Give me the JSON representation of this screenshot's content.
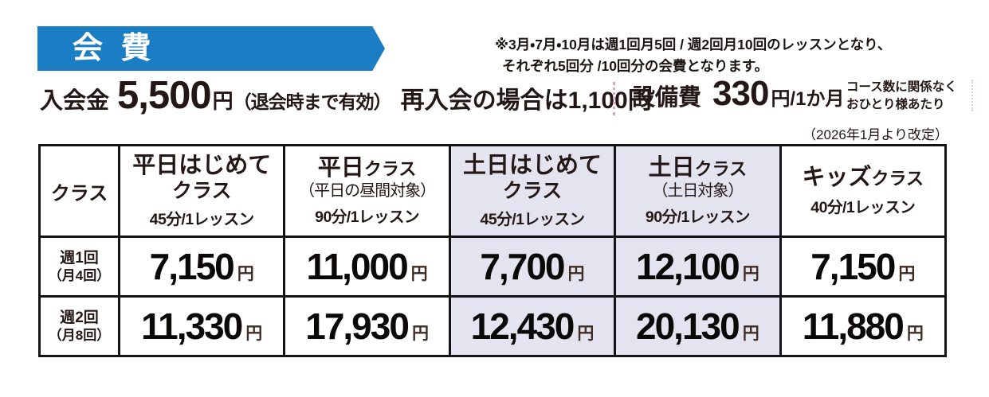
{
  "banner": {
    "title": "会 費"
  },
  "top_note": {
    "line1": "※3月・7月・10月は週1回月5回 / 週2回月10回のレッスンとなり、",
    "line2": "それぞれ5回分 /10回分の会費となります。"
  },
  "fees": {
    "admission_label": "入会金",
    "admission_amount": "5,500",
    "admission_unit": "円",
    "admission_validity": "（退会時まで有効）",
    "readmission": "再入会の場合は1,100円",
    "facility_label": "設備費",
    "facility_amount": "330",
    "facility_unit": "円/1か月",
    "facility_note_line1": "コース数に関係なく",
    "facility_note_line2": "おひとり様あたり"
  },
  "revision_note": "（2026年1月より改定）",
  "table": {
    "corner_label": "クラス",
    "price_unit": "円",
    "columns": [
      {
        "title": "平日はじめて",
        "title_suffix": "",
        "line2": "クラス",
        "lesson": "45分/1レッスン",
        "highlight": false
      },
      {
        "title": "平日",
        "title_suffix": "クラス",
        "line2": "（平日の昼間対象）",
        "lesson": "90分/1レッスン",
        "highlight": false
      },
      {
        "title": "土日はじめて",
        "title_suffix": "",
        "line2": "クラス",
        "lesson": "45分/1レッスン",
        "highlight": true
      },
      {
        "title": "土日",
        "title_suffix": "クラス",
        "line2": "（土日対象）",
        "lesson": "90分/1レッスン",
        "highlight": true
      },
      {
        "title": "キッズ",
        "title_suffix": "クラス",
        "line2": "",
        "lesson": "40分/1レッスン",
        "highlight": false
      }
    ],
    "rows": [
      {
        "label": "週1回",
        "label_sub": "（月4回）",
        "prices": [
          "7,150",
          "11,000",
          "7,700",
          "12,100",
          "7,150"
        ]
      },
      {
        "label": "週2回",
        "label_sub": "（月8回）",
        "prices": [
          "11,330",
          "17,930",
          "12,430",
          "20,130",
          "11,880"
        ]
      }
    ]
  },
  "colors": {
    "banner_blue": "#1b7ec4",
    "highlight_lavender": "#e4e3f0",
    "text_black": "#231815",
    "yen_brown": "#3f2d24",
    "divider_pink": "#d9a8be"
  }
}
